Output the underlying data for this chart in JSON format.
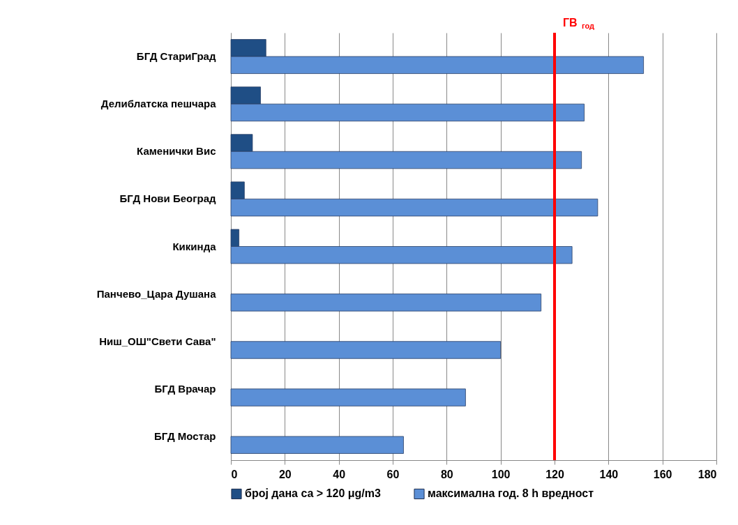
{
  "chart_data": {
    "type": "bar",
    "orientation": "horizontal",
    "categories": [
      "БГД СтариГрад",
      "Делиблатска пешчара",
      "Каменички Вис",
      "БГД Нови Београд",
      "Кикинда",
      "Панчево_Цара Душана",
      "Ниш_ОШ\"Свети Сава\"",
      "БГД Врачар",
      "БГД Мостар"
    ],
    "series": [
      {
        "name": "број дана са  > 120 μg/m3",
        "color": "#1f4e85",
        "values": [
          13,
          11,
          8,
          5,
          3,
          null,
          null,
          null,
          null
        ]
      },
      {
        "name": "максимална  год. 8 h вредност",
        "color": "#5b8fd6",
        "values": [
          153,
          131,
          130,
          136,
          126.5,
          115,
          100,
          87,
          64
        ]
      }
    ],
    "xlim": [
      0,
      180
    ],
    "xticks": [
      0,
      20,
      40,
      60,
      80,
      100,
      120,
      140,
      160,
      180
    ],
    "grid": "x",
    "legend": "bottom",
    "ref_lines": [
      {
        "axis": "x",
        "value": 120,
        "label": "ГВ $_{год}$",
        "color": "#ff0000"
      }
    ]
  }
}
